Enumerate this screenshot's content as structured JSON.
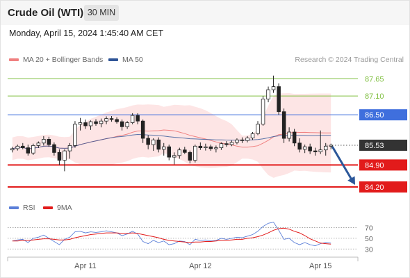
{
  "header": {
    "instrument": "Crude Oil (WTI)",
    "timeframe": "30 MIN",
    "datetime": "Monday, April 15, 2024 1:45:40 AM CET"
  },
  "legend": {
    "ma20": "MA 20 + Bollinger Bands",
    "ma50": "MA 50",
    "credit": "Research © 2024 Trading Central",
    "rsi": "RSI",
    "rsi_ma": "9MA"
  },
  "colors": {
    "ma20": "#f08080",
    "ma50": "#2f5597",
    "band_fill": "#fde0e0",
    "resistance": "#7fbf3f",
    "pivot": "#3f6fdd",
    "support": "#e21b1b",
    "up_candle": "#ffffff",
    "down_candle": "#222222",
    "rsi": "#5b7fd8",
    "rsi_ma": "#e21b1b",
    "arrow": "#2b579a",
    "current_badge": "#333333"
  },
  "levels": [
    {
      "label": "87.65",
      "value": 87.65,
      "kind": "resistance"
    },
    {
      "label": "87.10",
      "value": 87.1,
      "kind": "resistance"
    },
    {
      "label": "86.50",
      "value": 86.5,
      "kind": "pivot"
    },
    {
      "label": "85.53",
      "value": 85.53,
      "kind": "current"
    },
    {
      "label": "84.90",
      "value": 84.9,
      "kind": "support"
    },
    {
      "label": "84.20",
      "value": 84.2,
      "kind": "support"
    }
  ],
  "rsi_levels": [
    {
      "label": "70",
      "value": 70
    },
    {
      "label": "50",
      "value": 50
    },
    {
      "label": "30",
      "value": 30
    }
  ],
  "x_axis": {
    "labels": [
      {
        "label": "Apr 11",
        "bar": 14
      },
      {
        "label": "Apr 12",
        "bar": 36
      },
      {
        "label": "Apr 15",
        "bar": 59
      }
    ]
  },
  "chart_data": {
    "type": "candlestick",
    "price_range": [
      84.0,
      87.9
    ],
    "bar_count": 62,
    "arrow": {
      "from": 85.53,
      "to": 84.2
    },
    "ohlc": [
      [
        85.38,
        85.48,
        85.3,
        85.42
      ],
      [
        85.42,
        85.55,
        85.36,
        85.5
      ],
      [
        85.5,
        85.6,
        85.4,
        85.45
      ],
      [
        85.45,
        85.55,
        85.2,
        85.28
      ],
      [
        85.28,
        85.58,
        85.22,
        85.52
      ],
      [
        85.52,
        85.65,
        85.44,
        85.6
      ],
      [
        85.6,
        85.82,
        85.52,
        85.72
      ],
      [
        85.72,
        85.8,
        85.48,
        85.55
      ],
      [
        85.55,
        85.62,
        85.2,
        85.3
      ],
      [
        85.3,
        85.4,
        84.9,
        85.05
      ],
      [
        85.05,
        85.4,
        84.7,
        85.35
      ],
      [
        85.35,
        85.6,
        85.1,
        85.52
      ],
      [
        85.52,
        86.3,
        85.45,
        86.2
      ],
      [
        86.2,
        86.4,
        86.0,
        86.25
      ],
      [
        86.25,
        86.35,
        86.05,
        86.15
      ],
      [
        86.15,
        86.32,
        86.02,
        86.28
      ],
      [
        86.28,
        86.36,
        86.15,
        86.22
      ],
      [
        86.22,
        86.38,
        86.1,
        86.3
      ],
      [
        86.3,
        86.45,
        86.2,
        86.38
      ],
      [
        86.38,
        86.46,
        86.28,
        86.35
      ],
      [
        86.35,
        86.42,
        86.22,
        86.28
      ],
      [
        86.28,
        86.35,
        86.0,
        86.12
      ],
      [
        86.12,
        86.3,
        86.05,
        86.25
      ],
      [
        86.25,
        86.55,
        86.2,
        86.48
      ],
      [
        86.48,
        86.55,
        86.2,
        86.3
      ],
      [
        86.3,
        86.35,
        85.6,
        85.75
      ],
      [
        85.75,
        85.85,
        85.4,
        85.55
      ],
      [
        85.55,
        85.75,
        85.35,
        85.7
      ],
      [
        85.7,
        85.78,
        85.3,
        85.4
      ],
      [
        85.4,
        85.6,
        85.2,
        85.48
      ],
      [
        85.48,
        85.55,
        85.05,
        85.15
      ],
      [
        85.15,
        85.3,
        84.92,
        85.2
      ],
      [
        85.2,
        85.45,
        85.1,
        85.38
      ],
      [
        85.38,
        85.48,
        85.25,
        85.3
      ],
      [
        85.3,
        85.36,
        84.95,
        85.05
      ],
      [
        85.05,
        85.55,
        84.98,
        85.5
      ],
      [
        85.5,
        85.62,
        85.38,
        85.45
      ],
      [
        85.45,
        85.58,
        85.36,
        85.48
      ],
      [
        85.48,
        85.55,
        85.35,
        85.42
      ],
      [
        85.42,
        85.52,
        85.3,
        85.45
      ],
      [
        85.45,
        85.62,
        85.38,
        85.58
      ],
      [
        85.58,
        85.66,
        85.48,
        85.55
      ],
      [
        85.55,
        85.68,
        85.5,
        85.62
      ],
      [
        85.62,
        85.75,
        85.56,
        85.7
      ],
      [
        85.7,
        85.78,
        85.6,
        85.68
      ],
      [
        85.68,
        85.82,
        85.62,
        85.76
      ],
      [
        85.76,
        85.95,
        85.7,
        85.9
      ],
      [
        85.9,
        86.3,
        85.85,
        86.2
      ],
      [
        86.2,
        87.1,
        86.15,
        87.0
      ],
      [
        87.0,
        87.4,
        86.9,
        87.3
      ],
      [
        87.3,
        87.75,
        87.2,
        87.4
      ],
      [
        87.4,
        87.5,
        86.5,
        86.6
      ],
      [
        86.6,
        86.7,
        85.6,
        85.75
      ],
      [
        85.75,
        86.1,
        85.65,
        85.95
      ],
      [
        85.95,
        86.05,
        85.5,
        85.6
      ],
      [
        85.6,
        85.75,
        85.3,
        85.4
      ],
      [
        85.4,
        85.55,
        85.28,
        85.48
      ],
      [
        85.48,
        85.58,
        85.25,
        85.35
      ],
      [
        85.35,
        85.45,
        85.2,
        85.32
      ],
      [
        85.32,
        86.0,
        85.25,
        85.38
      ],
      [
        85.38,
        85.6,
        85.2,
        85.5
      ],
      [
        85.5,
        85.58,
        85.4,
        85.53
      ]
    ],
    "rsi": [
      45,
      47,
      48,
      42,
      50,
      52,
      56,
      50,
      44,
      38,
      48,
      52,
      62,
      63,
      60,
      62,
      61,
      62,
      64,
      62,
      60,
      55,
      58,
      63,
      58,
      44,
      40,
      46,
      42,
      45,
      38,
      40,
      45,
      44,
      38,
      48,
      46,
      47,
      45,
      46,
      50,
      48,
      50,
      52,
      51,
      54,
      57,
      63,
      72,
      78,
      80,
      65,
      48,
      50,
      42,
      38,
      42,
      38,
      36,
      40,
      42,
      41
    ],
    "rsi_ma": [
      45,
      45,
      46,
      46,
      47,
      48,
      49,
      49,
      48,
      47,
      47,
      48,
      51,
      53,
      55,
      57,
      58,
      59,
      60,
      60,
      60,
      59,
      59,
      60,
      59,
      57,
      55,
      53,
      51,
      48,
      46,
      45,
      44,
      43,
      42,
      43,
      43,
      44,
      44,
      45,
      46,
      46,
      47,
      48,
      48,
      50,
      51,
      53,
      56,
      60,
      65,
      68,
      69,
      67,
      63,
      60,
      55,
      49,
      45,
      41,
      40,
      39
    ]
  }
}
